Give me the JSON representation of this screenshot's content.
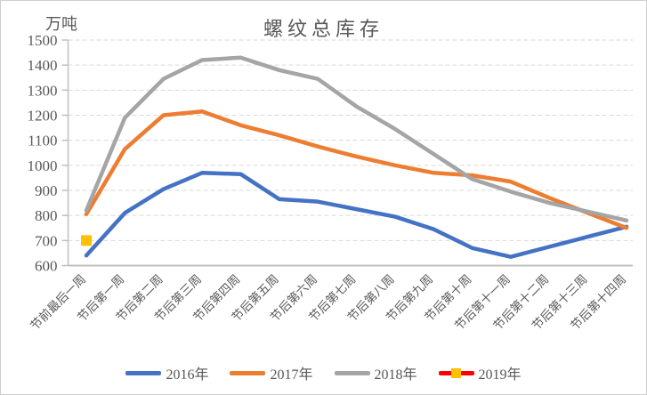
{
  "title": "螺纹总库存",
  "y_axis_unit_label": "万吨",
  "chart_data": {
    "type": "line",
    "title": "螺纹总库存",
    "ylabel": "万吨",
    "ylim": [
      600,
      1500
    ],
    "ytick_interval": 100,
    "ytick_labels": [
      "600",
      "700",
      "800",
      "900",
      "1000",
      "1100",
      "1200",
      "1300",
      "1400",
      "1500"
    ],
    "grid": "horizontal-dashed",
    "legend_position": "bottom",
    "categories": [
      "节前最后一周",
      "节后第一周",
      "节后第二周",
      "节后第三周",
      "节后第四周",
      "节后第五周",
      "节后第六周",
      "节后第七周",
      "节后第八周",
      "节后第九周",
      "节后第十周",
      "节后第十一周",
      "节后第十二周",
      "节后第十三周",
      "节后第十四周"
    ],
    "series": [
      {
        "name": "2016年",
        "color": "#4472C4",
        "style": "line",
        "values": [
          640,
          810,
          905,
          970,
          965,
          865,
          855,
          825,
          795,
          745,
          670,
          635,
          675,
          715,
          755
        ]
      },
      {
        "name": "2017年",
        "color": "#ED7D31",
        "style": "line",
        "values": [
          805,
          1065,
          1200,
          1215,
          1160,
          1120,
          1075,
          1035,
          1000,
          970,
          960,
          935,
          870,
          810,
          750
        ]
      },
      {
        "name": "2018年",
        "color": "#A5A5A5",
        "style": "line",
        "values": [
          820,
          1190,
          1345,
          1420,
          1430,
          1380,
          1345,
          1235,
          1145,
          1045,
          945,
          895,
          850,
          815,
          780
        ]
      },
      {
        "name": "2019年",
        "color": "#FF0000",
        "marker": "square",
        "marker_color": "#FFC000",
        "style": "marker-only",
        "values": [
          700,
          null,
          null,
          null,
          null,
          null,
          null,
          null,
          null,
          null,
          null,
          null,
          null,
          null,
          null
        ]
      }
    ],
    "colors": {
      "axis_text": "#595959",
      "gridline": "#d9d9d9",
      "axis_line": "#bfbfbf"
    }
  }
}
